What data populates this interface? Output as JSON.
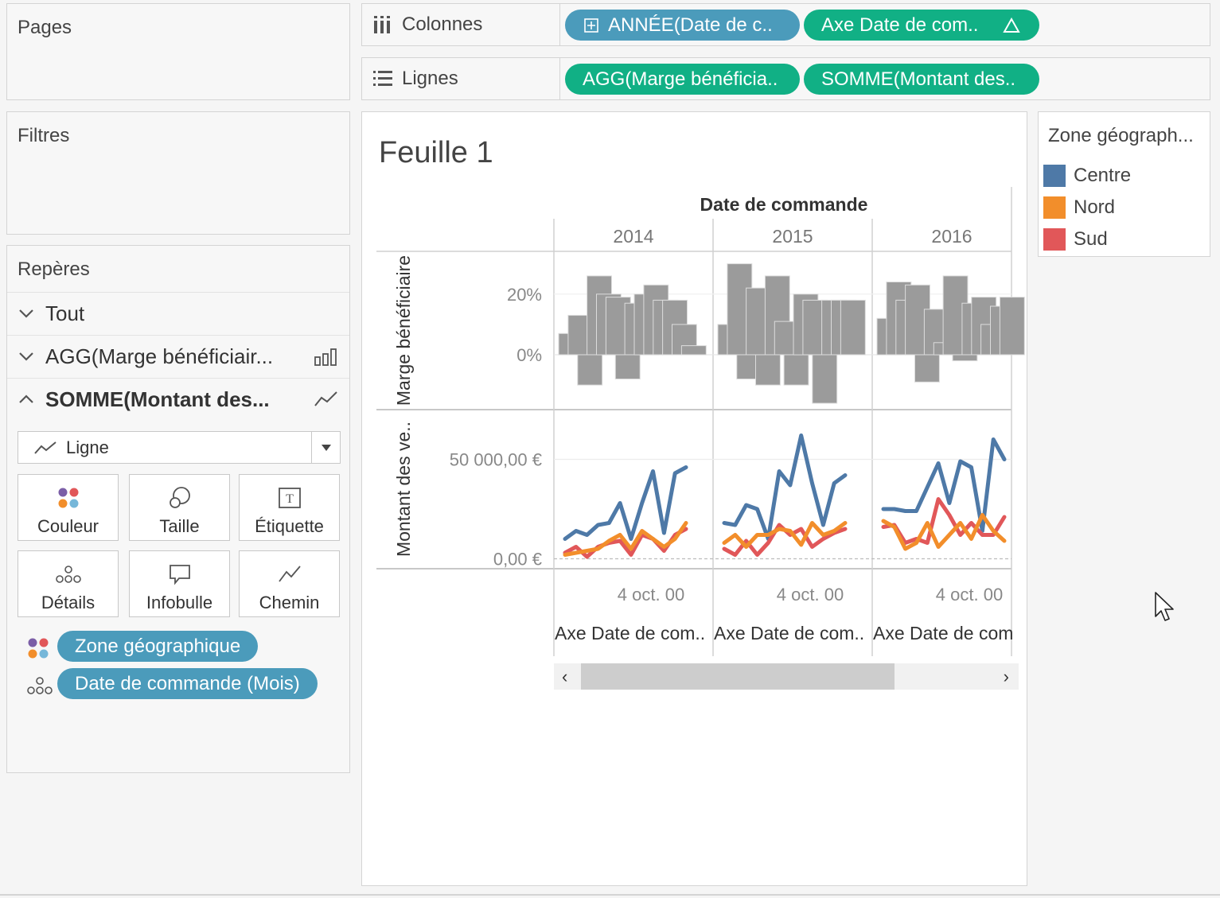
{
  "pages": {
    "title": "Pages"
  },
  "filters": {
    "title": "Filtres"
  },
  "marks": {
    "title": "Repères",
    "rows": [
      {
        "label": "Tout",
        "expanded": false,
        "icon": "none"
      },
      {
        "label": "AGG(Marge bénéficiair...",
        "expanded": false,
        "icon": "bar-chart-icon"
      },
      {
        "label": "SOMME(Montant des...",
        "expanded": true,
        "icon": "line-chart-icon"
      }
    ],
    "mark_type": "Ligne",
    "buttons": {
      "color": "Couleur",
      "size": "Taille",
      "label": "Étiquette",
      "detail": "Détails",
      "tooltip": "Infobulle",
      "path": "Chemin"
    },
    "pills": [
      {
        "text": "Zone géographique",
        "kind": "color-icon"
      },
      {
        "text": "Date de commande (Mois)",
        "kind": "detail-icon"
      }
    ]
  },
  "shelves": {
    "columns": {
      "label": "Colonnes",
      "pills": [
        {
          "text": "ANNÉE(Date de c..",
          "color": "blue"
        },
        {
          "text": "Axe Date de com..",
          "color": "green"
        }
      ]
    },
    "rows": {
      "label": "Lignes",
      "pills": [
        {
          "text": "AGG(Marge bénéficia..",
          "color": "green"
        },
        {
          "text": "SOMME(Montant des..",
          "color": "green"
        }
      ]
    }
  },
  "sheet": {
    "title": "Feuille 1"
  },
  "legend": {
    "title": "Zone géograph...",
    "items": [
      {
        "label": "Centre",
        "color": "#4e79a7"
      },
      {
        "label": "Nord",
        "color": "#f28e2b"
      },
      {
        "label": "Sud",
        "color": "#e15759"
      }
    ]
  },
  "colors": {
    "bar": "#9b9b9b",
    "pill_blue": "#4b9bbb",
    "pill_green": "#11b085"
  },
  "chart_data": {
    "type": "bar",
    "column_header": "Date de commande",
    "years": [
      "2014",
      "2015",
      "2016"
    ],
    "x_tick_label": "4 oct. 00",
    "x_axis_title": "Axe Date de com..",
    "x_axis_title_last": "Axe Date de com",
    "panes": [
      {
        "measure": "Marge bénéficiaire",
        "type": "bar",
        "ticks": [
          {
            "value": 0.2,
            "label": "20%"
          },
          {
            "value": 0,
            "label": "0%"
          }
        ],
        "ylim": [
          -0.16,
          0.32
        ],
        "values": {
          "2014": [
            0.07,
            0.13,
            -0.1,
            0.26,
            0.2,
            0.19,
            -0.08,
            0.17,
            0.2,
            0.23,
            0.18,
            0.18,
            0.1,
            0.03
          ],
          "2015": [
            0.1,
            0.3,
            -0.08,
            0.22,
            -0.1,
            0.26,
            0.11,
            -0.1,
            0.2,
            0.18,
            -0.16,
            0.18,
            0.18,
            0.18
          ],
          "2016": [
            0.12,
            0.24,
            0.18,
            0.23,
            -0.09,
            0.15,
            0.04,
            0.26,
            -0.02,
            0.17,
            0.19,
            0.1,
            0.16,
            0.19
          ]
        }
      },
      {
        "measure": "Montant des ve..",
        "type": "line",
        "ticks": [
          {
            "value": 50000,
            "label": "50 000,00 €"
          },
          {
            "value": 0,
            "label": "0,00 €"
          }
        ],
        "ylim": [
          -5000,
          75000
        ],
        "series": [
          {
            "name": "Centre",
            "values": {
              "2014": [
                10000,
                14000,
                12000,
                17000,
                18000,
                28000,
                10000,
                28000,
                44000,
                13000,
                43000,
                46000
              ],
              "2015": [
                18000,
                17000,
                27000,
                25000,
                10000,
                44000,
                37000,
                62000,
                38000,
                17000,
                38000,
                42000
              ],
              "2016": [
                25000,
                25000,
                24000,
                24000,
                36000,
                48000,
                28000,
                49000,
                46000,
                14000,
                60000,
                50000
              ]
            }
          },
          {
            "name": "Nord",
            "values": {
              "2014": [
                2000,
                3000,
                4000,
                5000,
                9000,
                12000,
                5000,
                14000,
                10000,
                6000,
                10000,
                18000
              ],
              "2015": [
                8000,
                12000,
                6000,
                12000,
                12000,
                15000,
                14000,
                7000,
                18000,
                12000,
                14000,
                18000
              ],
              "2016": [
                19000,
                16000,
                5000,
                8000,
                18000,
                6000,
                12000,
                18000,
                10000,
                22000,
                14000,
                9000
              ]
            }
          },
          {
            "name": "Sud",
            "values": {
              "2014": [
                3000,
                6000,
                1000,
                6000,
                8000,
                9000,
                2000,
                12000,
                10000,
                4000,
                12000,
                15000
              ],
              "2015": [
                5000,
                2000,
                9000,
                2000,
                8000,
                17000,
                12000,
                15000,
                6000,
                10000,
                13000,
                15000
              ],
              "2016": [
                16000,
                17000,
                8000,
                10000,
                8000,
                30000,
                22000,
                12000,
                18000,
                12000,
                12000,
                21000
              ]
            }
          }
        ]
      }
    ]
  }
}
